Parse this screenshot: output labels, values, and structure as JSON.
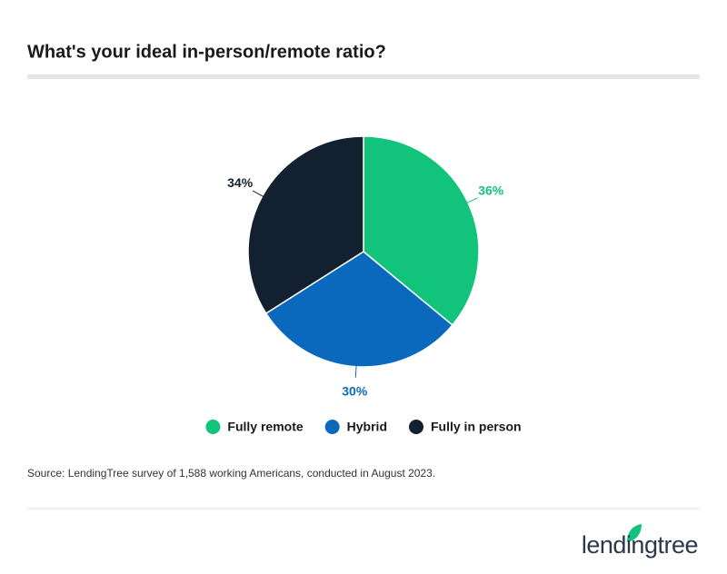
{
  "chart_data": {
    "type": "pie",
    "title": "What's your ideal in-person/remote ratio?",
    "categories": [
      "Fully remote",
      "Hybrid",
      "Fully in person"
    ],
    "values": [
      36,
      30,
      34
    ],
    "value_labels": [
      "36%",
      "30%",
      "34%"
    ],
    "colors": [
      "#12c47b",
      "#0b69bd",
      "#13202f"
    ],
    "source": "Source: LendingTree survey of 1,588 working Americans, conducted in August 2023.",
    "brand": "lendingtree"
  }
}
